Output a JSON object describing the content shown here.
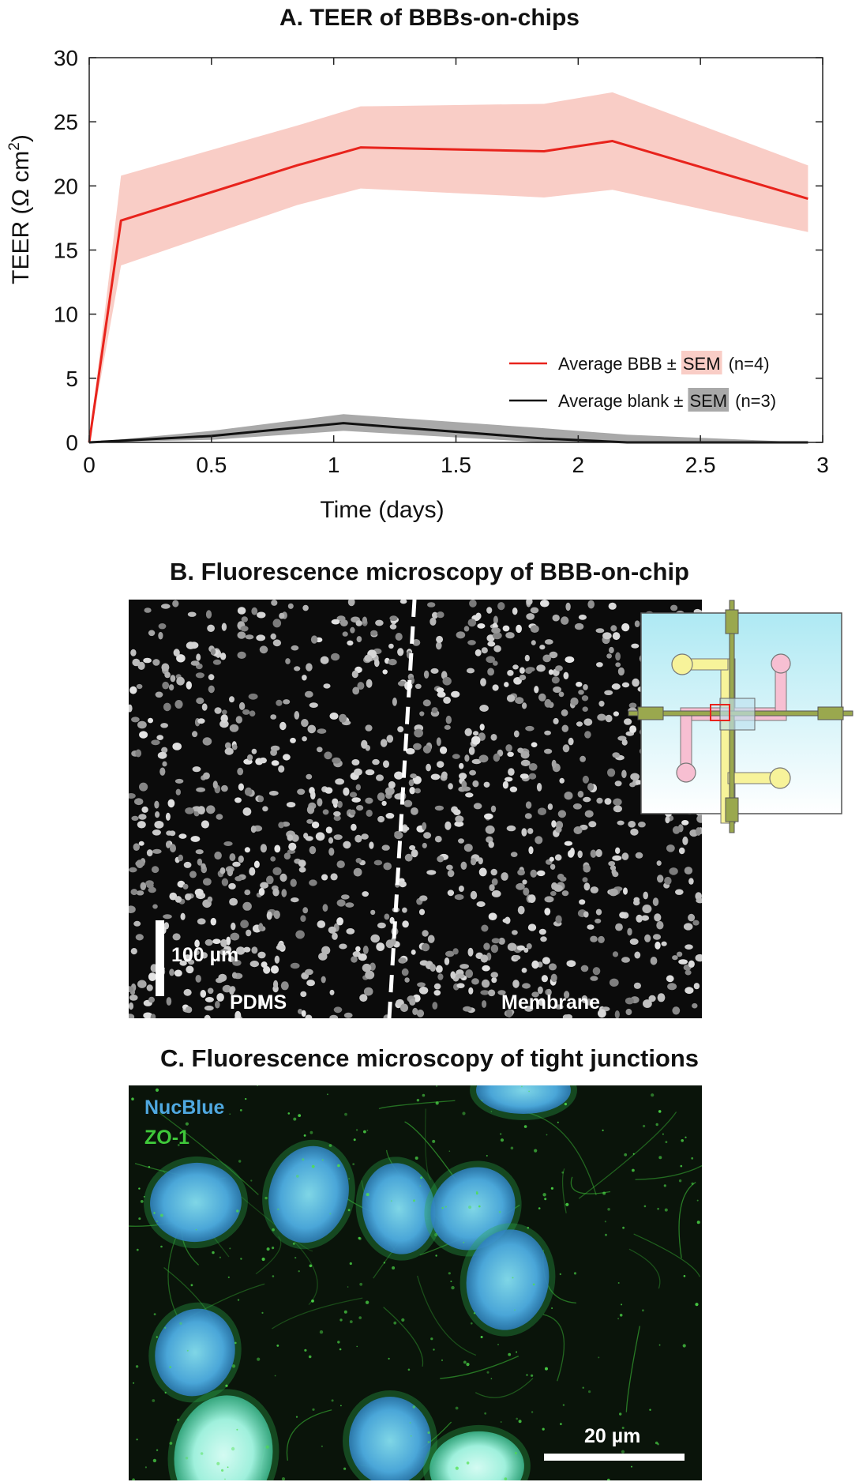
{
  "panel_a": {
    "chart_data": {
      "type": "line",
      "title": "A. TEER of BBBs-on-chips",
      "xlabel": "Time (days)",
      "ylabel_main": "TEER (Ω cm",
      "ylabel_sup": "2",
      "ylabel_close": ")",
      "xlim": [
        0,
        3
      ],
      "ylim": [
        0,
        30
      ],
      "xticks": [
        0,
        0.5,
        1,
        1.5,
        2,
        2.5,
        3
      ],
      "xtick_labels": [
        "0",
        "0.5",
        "1",
        "1.5",
        "2",
        "2.5",
        "3"
      ],
      "yticks": [
        0,
        5,
        10,
        15,
        20,
        25,
        30
      ],
      "ytick_labels": [
        "0",
        "5",
        "10",
        "15",
        "20",
        "25",
        "30"
      ],
      "grid": false,
      "legend_position": "bottom-right",
      "series": [
        {
          "legend_prefix": "Average BBB ±",
          "legend_sem": "SEM",
          "legend_suffix": "(n=4)",
          "color": "#e8231c",
          "band_color": "#f9cdc6",
          "x": [
            0,
            0.13,
            0.85,
            1.11,
            1.86,
            2.14,
            2.94
          ],
          "mean": [
            0,
            17.3,
            21.6,
            23.0,
            22.7,
            23.5,
            19.0
          ],
          "upper": [
            0,
            20.8,
            24.7,
            26.2,
            26.4,
            27.3,
            21.6
          ],
          "lower": [
            0,
            13.8,
            18.5,
            19.8,
            19.1,
            19.7,
            16.4
          ]
        },
        {
          "legend_prefix": "Average blank ±",
          "legend_sem": "SEM",
          "legend_suffix": "(n=3)",
          "color": "#111111",
          "band_color": "#a9a9a9",
          "x": [
            0,
            0.5,
            1.04,
            1.86,
            2.2,
            2.94
          ],
          "mean": [
            0,
            0.5,
            1.5,
            0.3,
            0.0,
            0.0
          ],
          "upper": [
            0,
            0.9,
            2.2,
            1.1,
            0.6,
            0.0
          ],
          "lower": [
            0,
            0.2,
            0.9,
            0.0,
            0.0,
            0.0
          ]
        }
      ]
    }
  },
  "panel_b": {
    "title": "B. Fluorescence microscopy of BBB-on-chip",
    "scale_bar_label": "100 µm",
    "left_region_label": "PDMS",
    "right_region_label": "Membrane",
    "colors": {
      "background": "#0b0b0b",
      "nuclei": "#cfcfcf",
      "inset_bg": "#bfeff5",
      "channel_yellow": "#f7f39a",
      "channel_pink": "#f7bfd2",
      "electrode": "#9aa84e",
      "highlight": "#e8231c"
    }
  },
  "panel_c": {
    "title": "C. Fluorescence microscopy of tight junctions",
    "stain_1_label": "NucBlue",
    "stain_2_label": "ZO-1",
    "scale_bar_label": "20 µm",
    "colors": {
      "background": "#0a140a",
      "nucblue": "#4fa8e0",
      "zo1": "#3fc83a"
    }
  }
}
